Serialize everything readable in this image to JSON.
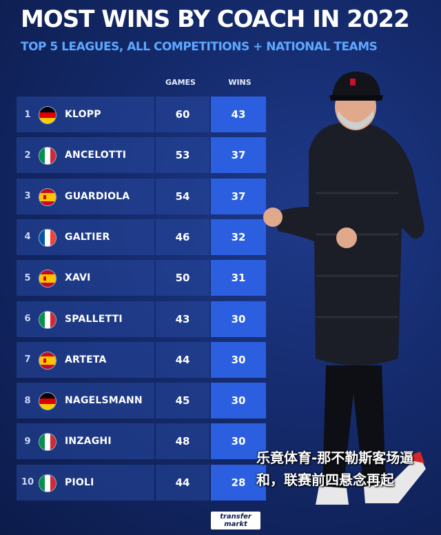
{
  "header": {
    "title": "MOST WINS BY COACH IN 2022",
    "subtitle": "TOP 5 LEAGUES, ALL COMPETITIONS + NATIONAL TEAMS"
  },
  "chart_data": {
    "type": "table",
    "columns": [
      "GAMES",
      "WINS"
    ],
    "rows": [
      {
        "rank": "1",
        "flag": "germany",
        "coach": "KLOPP",
        "games": 60,
        "wins": 43
      },
      {
        "rank": "2",
        "flag": "italy",
        "coach": "ANCELOTTI",
        "games": 53,
        "wins": 37
      },
      {
        "rank": "3",
        "flag": "spain",
        "coach": "GUARDIOLA",
        "games": 54,
        "wins": 37
      },
      {
        "rank": "4",
        "flag": "france",
        "coach": "GALTIER",
        "games": 46,
        "wins": 32
      },
      {
        "rank": "5",
        "flag": "spain",
        "coach": "XAVI",
        "games": 50,
        "wins": 31
      },
      {
        "rank": "6",
        "flag": "italy",
        "coach": "SPALLETTI",
        "games": 43,
        "wins": 30
      },
      {
        "rank": "7",
        "flag": "spain",
        "coach": "ARTETA",
        "games": 44,
        "wins": 30
      },
      {
        "rank": "8",
        "flag": "germany",
        "coach": "NAGELSMANN",
        "games": 45,
        "wins": 30
      },
      {
        "rank": "9",
        "flag": "italy",
        "coach": "INZAGHI",
        "games": 48,
        "wins": 30
      },
      {
        "rank": "10",
        "flag": "italy",
        "coach": "PIOLI",
        "games": 44,
        "wins": 28
      }
    ]
  },
  "logo": {
    "line1": "transfer",
    "line2": "markt"
  },
  "overlay_text": "乐竟体育-那不勒斯客场逼和，联赛前四悬念再起",
  "colors": {
    "background": "#142a6b",
    "wins_cell": "#2b5fe0",
    "subtitle": "#5ea8ff"
  }
}
